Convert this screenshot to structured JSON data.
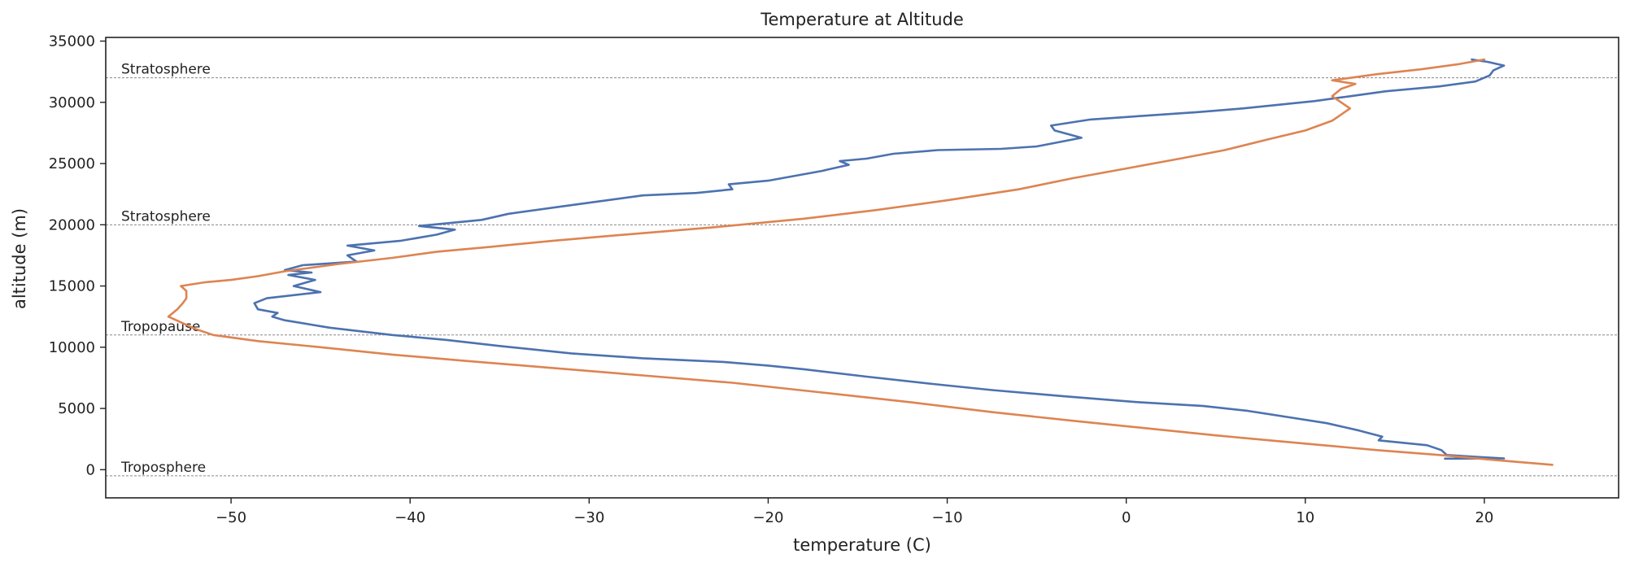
{
  "chart_data": {
    "type": "line",
    "title": "Temperature at Altitude",
    "xlabel": "temperature (C)",
    "ylabel": "altitude (m)",
    "xlim": [
      -57,
      27.5
    ],
    "ylim": [
      -2300,
      35300
    ],
    "xticks": [
      -50,
      -40,
      -30,
      -20,
      -10,
      0,
      10,
      20
    ],
    "yticks": [
      0,
      5000,
      10000,
      15000,
      20000,
      25000,
      30000,
      35000
    ],
    "grid": false,
    "legend": "none",
    "reference_lines": [
      {
        "label": "Troposphere",
        "y": -500
      },
      {
        "label": "Tropopause",
        "y": 11000
      },
      {
        "label": "Stratosphere",
        "y": 20000
      },
      {
        "label": "Stratosphere",
        "y": 32000
      }
    ],
    "reference_line_color": "#888888",
    "series": [
      {
        "color": "#4c72b0",
        "points": [
          [
            17.8,
            900
          ],
          [
            21.1,
            920
          ],
          [
            19.5,
            1050
          ],
          [
            17.9,
            1200
          ],
          [
            17.6,
            1600
          ],
          [
            16.8,
            2000
          ],
          [
            14.1,
            2400
          ],
          [
            14.3,
            2700
          ],
          [
            13.0,
            3200
          ],
          [
            11.2,
            3800
          ],
          [
            9.0,
            4300
          ],
          [
            6.8,
            4800
          ],
          [
            4.3,
            5200
          ],
          [
            0.8,
            5500
          ],
          [
            -3.5,
            6000
          ],
          [
            -7.5,
            6500
          ],
          [
            -10.8,
            7000
          ],
          [
            -14.5,
            7600
          ],
          [
            -18.0,
            8200
          ],
          [
            -20.0,
            8500
          ],
          [
            -22.5,
            8800
          ],
          [
            -27.0,
            9100
          ],
          [
            -31.0,
            9500
          ],
          [
            -35.0,
            10100
          ],
          [
            -38.0,
            10600
          ],
          [
            -41.0,
            11000
          ],
          [
            -44.5,
            11600
          ],
          [
            -47.0,
            12200
          ],
          [
            -47.7,
            12500
          ],
          [
            -47.4,
            12800
          ],
          [
            -48.5,
            13100
          ],
          [
            -48.7,
            13600
          ],
          [
            -48.0,
            14000
          ],
          [
            -45.0,
            14500
          ],
          [
            -46.5,
            15000
          ],
          [
            -45.3,
            15500
          ],
          [
            -46.8,
            15900
          ],
          [
            -45.5,
            16100
          ],
          [
            -47.0,
            16300
          ],
          [
            -46.0,
            16700
          ],
          [
            -43.0,
            17000
          ],
          [
            -43.5,
            17500
          ],
          [
            -42.0,
            17900
          ],
          [
            -43.5,
            18300
          ],
          [
            -40.5,
            18700
          ],
          [
            -38.5,
            19200
          ],
          [
            -37.5,
            19600
          ],
          [
            -39.5,
            19900
          ],
          [
            -36.0,
            20400
          ],
          [
            -34.5,
            20900
          ],
          [
            -32.0,
            21400
          ],
          [
            -29.5,
            21900
          ],
          [
            -27.0,
            22400
          ],
          [
            -24.0,
            22600
          ],
          [
            -22.0,
            22900
          ],
          [
            -22.2,
            23300
          ],
          [
            -20.0,
            23600
          ],
          [
            -18.5,
            24000
          ],
          [
            -17.0,
            24400
          ],
          [
            -15.5,
            24900
          ],
          [
            -16.0,
            25200
          ],
          [
            -14.5,
            25400
          ],
          [
            -13.0,
            25800
          ],
          [
            -10.5,
            26100
          ],
          [
            -7.0,
            26200
          ],
          [
            -5.0,
            26400
          ],
          [
            -2.5,
            27100
          ],
          [
            -4.0,
            27700
          ],
          [
            -4.2,
            28100
          ],
          [
            -2.0,
            28600
          ],
          [
            1.0,
            28900
          ],
          [
            4.0,
            29200
          ],
          [
            6.5,
            29500
          ],
          [
            8.5,
            29800
          ],
          [
            10.5,
            30100
          ],
          [
            12.5,
            30500
          ],
          [
            14.5,
            30900
          ],
          [
            17.5,
            31300
          ],
          [
            19.5,
            31700
          ],
          [
            20.3,
            32200
          ],
          [
            20.5,
            32600
          ],
          [
            21.1,
            33000
          ],
          [
            20.2,
            33300
          ],
          [
            19.3,
            33500
          ]
        ]
      },
      {
        "color": "#dd8452",
        "points": [
          [
            23.8,
            400
          ],
          [
            20.5,
            800
          ],
          [
            17.5,
            1200
          ],
          [
            14.0,
            1600
          ],
          [
            11.0,
            2000
          ],
          [
            8.0,
            2400
          ],
          [
            5.0,
            2800
          ],
          [
            1.0,
            3400
          ],
          [
            -3.0,
            4000
          ],
          [
            -7.5,
            4700
          ],
          [
            -12.0,
            5500
          ],
          [
            -17.0,
            6300
          ],
          [
            -22.0,
            7100
          ],
          [
            -27.0,
            7700
          ],
          [
            -32.0,
            8300
          ],
          [
            -37.0,
            8900
          ],
          [
            -41.0,
            9400
          ],
          [
            -45.0,
            10000
          ],
          [
            -48.5,
            10500
          ],
          [
            -51.0,
            11000
          ],
          [
            -52.0,
            11500
          ],
          [
            -53.5,
            12500
          ],
          [
            -53.0,
            13100
          ],
          [
            -52.7,
            13600
          ],
          [
            -52.5,
            14000
          ],
          [
            -52.5,
            14600
          ],
          [
            -52.8,
            15000
          ],
          [
            -51.5,
            15300
          ],
          [
            -50.0,
            15500
          ],
          [
            -48.5,
            15800
          ],
          [
            -47.0,
            16200
          ],
          [
            -46.0,
            16400
          ],
          [
            -44.0,
            16800
          ],
          [
            -41.0,
            17300
          ],
          [
            -38.5,
            17800
          ],
          [
            -35.5,
            18200
          ],
          [
            -32.0,
            18700
          ],
          [
            -28.0,
            19200
          ],
          [
            -23.0,
            19800
          ],
          [
            -18.0,
            20500
          ],
          [
            -14.0,
            21200
          ],
          [
            -10.0,
            22000
          ],
          [
            -6.0,
            22900
          ],
          [
            -3.0,
            23800
          ],
          [
            0.0,
            24600
          ],
          [
            3.0,
            25400
          ],
          [
            5.5,
            26100
          ],
          [
            8.0,
            27000
          ],
          [
            10.0,
            27700
          ],
          [
            11.5,
            28500
          ],
          [
            12.5,
            29500
          ],
          [
            11.5,
            30500
          ],
          [
            12.0,
            31100
          ],
          [
            12.8,
            31500
          ],
          [
            11.5,
            31800
          ],
          [
            14.0,
            32300
          ],
          [
            16.5,
            32700
          ],
          [
            18.5,
            33100
          ],
          [
            20.0,
            33500
          ]
        ]
      }
    ]
  }
}
